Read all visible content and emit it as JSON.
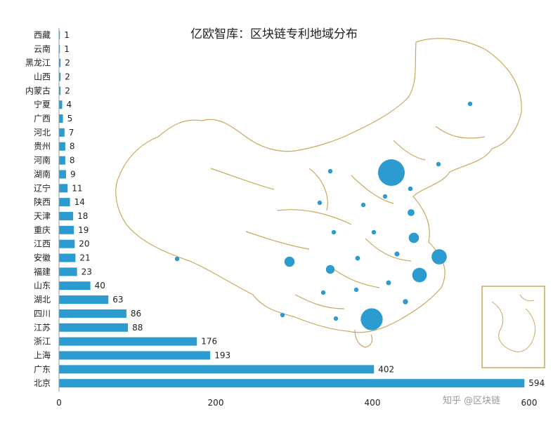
{
  "chart_data": {
    "type": "bar",
    "orientation": "horizontal",
    "title": "亿欧智库：区块链专利地域分布",
    "categories": [
      "西藏",
      "云南",
      "黑龙江",
      "山西",
      "内蒙古",
      "宁夏",
      "广西",
      "河北",
      "贵州",
      "河南",
      "湖南",
      "辽宁",
      "陕西",
      "天津",
      "重庆",
      "江西",
      "安徽",
      "福建",
      "山东",
      "湖北",
      "四川",
      "江苏",
      "浙江",
      "上海",
      "广东",
      "北京"
    ],
    "values": [
      1,
      1,
      2,
      2,
      2,
      4,
      5,
      7,
      8,
      8,
      9,
      11,
      14,
      18,
      19,
      20,
      21,
      23,
      40,
      63,
      86,
      88,
      176,
      193,
      402,
      594
    ],
    "xticks": [
      0,
      200,
      400,
      600
    ],
    "xlim": [
      0,
      600
    ],
    "xlabel": "",
    "ylabel": "",
    "colors": {
      "bar": "#2b9bd0",
      "bubble": "#2b9bd0",
      "map_outline": "#c9a95d"
    },
    "map_bubbles": [
      {
        "region": "黑龙江",
        "value": 2
      },
      {
        "region": "北京",
        "value": 594
      },
      {
        "region": "辽宁",
        "value": 11
      },
      {
        "region": "河北",
        "value": 7
      },
      {
        "region": "天津",
        "value": 18
      },
      {
        "region": "山西",
        "value": 2
      },
      {
        "region": "内蒙古",
        "value": 2
      },
      {
        "region": "宁夏",
        "value": 4
      },
      {
        "region": "山东",
        "value": 40
      },
      {
        "region": "陕西",
        "value": 14
      },
      {
        "region": "河南",
        "value": 8
      },
      {
        "region": "江苏",
        "value": 88
      },
      {
        "region": "四川",
        "value": 86
      },
      {
        "region": "重庆",
        "value": 19
      },
      {
        "region": "湖北",
        "value": 63
      },
      {
        "region": "安徽",
        "value": 21
      },
      {
        "region": "上海",
        "value": 193
      },
      {
        "region": "浙江",
        "value": 176
      },
      {
        "region": "贵州",
        "value": 8
      },
      {
        "region": "湖南",
        "value": 9
      },
      {
        "region": "江西",
        "value": 20
      },
      {
        "region": "福建",
        "value": 23
      },
      {
        "region": "云南",
        "value": 1
      },
      {
        "region": "广西",
        "value": 5
      },
      {
        "region": "广东",
        "value": 402
      },
      {
        "region": "西藏",
        "value": 1
      }
    ]
  },
  "watermark": "知乎 @区块链"
}
